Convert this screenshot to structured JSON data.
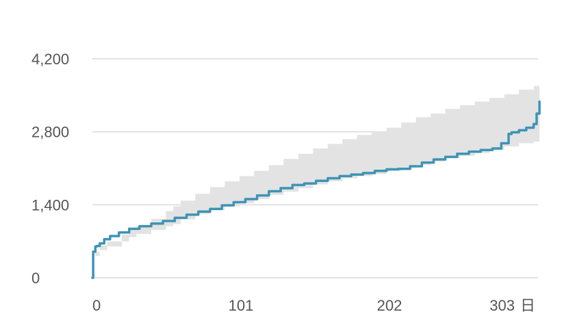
{
  "chart_data": {
    "type": "line",
    "title": "",
    "xlabel": "",
    "ylabel": "",
    "x_unit": "日",
    "xlim": [
      0,
      303
    ],
    "ylim": [
      0,
      4200
    ],
    "x_ticks": [
      0,
      101,
      202,
      303
    ],
    "x_tick_labels": [
      "0",
      "101",
      "202",
      "303"
    ],
    "y_ticks": [
      0,
      1400,
      2800,
      4200
    ],
    "y_tick_labels": [
      "0",
      "1,400",
      "2,800",
      "4,200"
    ],
    "grid": true,
    "legend": "none",
    "colors": {
      "line": "#3f93b5",
      "band": "#e3e3e3",
      "grid": "#d9d9d9",
      "text": "#555555"
    },
    "series": [
      {
        "role": "line",
        "x": [
          0,
          0.5,
          2,
          3,
          5,
          8,
          12,
          18,
          25,
          32,
          40,
          48,
          56,
          64,
          72,
          80,
          88,
          96,
          104,
          112,
          120,
          128,
          136,
          144,
          152,
          160,
          168,
          176,
          184,
          192,
          200,
          208,
          216,
          224,
          232,
          240,
          248,
          256,
          264,
          272,
          278,
          283,
          285,
          290,
          295,
          300,
          302,
          304
        ],
        "y": [
          0,
          500,
          600,
          610,
          660,
          740,
          800,
          870,
          940,
          990,
          1040,
          1090,
          1150,
          1210,
          1270,
          1320,
          1390,
          1450,
          1510,
          1580,
          1660,
          1720,
          1780,
          1810,
          1860,
          1910,
          1950,
          1980,
          2010,
          2050,
          2080,
          2090,
          2140,
          2210,
          2270,
          2320,
          2380,
          2420,
          2450,
          2480,
          2580,
          2760,
          2790,
          2830,
          2880,
          2950,
          3150,
          3380
        ]
      },
      {
        "role": "band",
        "x": [
          0,
          2,
          5,
          10,
          20,
          25,
          30,
          40,
          50,
          55,
          60,
          70,
          80,
          90,
          100,
          110,
          120,
          130,
          140,
          150,
          160,
          170,
          180,
          190,
          200,
          210,
          220,
          230,
          240,
          250,
          260,
          270,
          280,
          290,
          300,
          304
        ],
        "y_low": [
          0,
          420,
          530,
          600,
          700,
          780,
          840,
          920,
          990,
          1030,
          1120,
          1220,
          1300,
          1370,
          1430,
          1510,
          1590,
          1650,
          1720,
          1790,
          1850,
          1910,
          1950,
          1990,
          2050,
          2110,
          2170,
          2230,
          2290,
          2340,
          2390,
          2450,
          2520,
          2580,
          2610,
          2620
        ],
        "y_high": [
          0,
          500,
          620,
          700,
          830,
          920,
          1000,
          1130,
          1280,
          1370,
          1480,
          1610,
          1740,
          1850,
          1950,
          2050,
          2160,
          2280,
          2380,
          2480,
          2570,
          2660,
          2740,
          2810,
          2880,
          2980,
          3080,
          3150,
          3240,
          3310,
          3380,
          3450,
          3520,
          3610,
          3680,
          3700
        ]
      }
    ]
  }
}
